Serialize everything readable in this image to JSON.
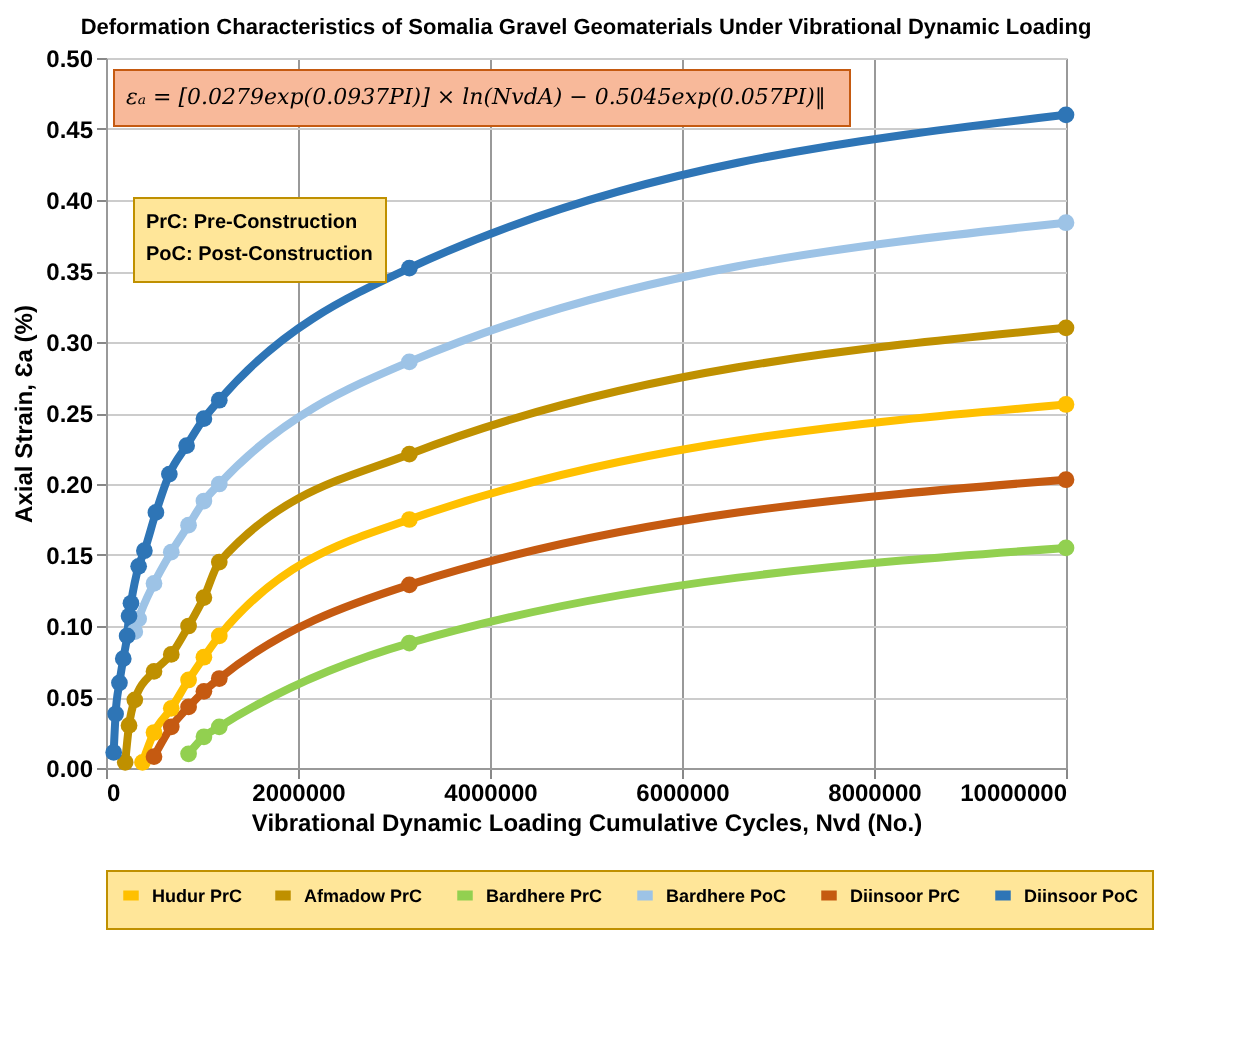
{
  "chart_data": {
    "type": "line",
    "title": "Deformation Characteristics of Somalia Gravel Geomaterials Under Vibrational Dynamic Loading",
    "xlabel": "Vibrational Dynamic Loading Cumulative Cycles, Nvd (No.)",
    "ylabel": "Axial Strain, Ɛa (%)",
    "annotations": [
      "εₐ = [0.0279exp(0.0937PI)] × ln(NvdA) − 0.5045exp(0.057PI)‖",
      "PrC: Pre-Construction",
      "PoC: Post-Construction"
    ],
    "series": [
      {
        "name": "Hudur PrC",
        "color": "#ffc000",
        "x": [
          380000,
          500000,
          680000,
          860000,
          1020000,
          1180000,
          3160000,
          10000000
        ],
        "values": [
          0.004,
          0.025,
          0.042,
          0.062,
          0.078,
          0.093,
          0.175,
          0.256
        ]
      },
      {
        "name": "Afmadow PrC",
        "color": "#bf9000",
        "x": [
          200000,
          240000,
          300000,
          500000,
          680000,
          860000,
          1020000,
          1180000,
          3160000,
          10000000
        ],
        "values": [
          0.004,
          0.03,
          0.048,
          0.068,
          0.08,
          0.1,
          0.12,
          0.145,
          0.221,
          0.31
        ]
      },
      {
        "name": "Bardhere PrC",
        "color": "#92d050",
        "x": [
          860000,
          1020000,
          1180000,
          3160000,
          10000000
        ],
        "values": [
          0.01,
          0.022,
          0.029,
          0.088,
          0.155
        ]
      },
      {
        "name": "Bardhere PoC",
        "color": "#9dc3e6",
        "x": [
          300000,
          340000,
          500000,
          680000,
          860000,
          1020000,
          1180000,
          3160000,
          10000000
        ],
        "values": [
          0.096,
          0.105,
          0.13,
          0.152,
          0.171,
          0.188,
          0.2,
          0.286,
          0.384
        ]
      },
      {
        "name": "Diinsoor PrC",
        "color": "#c55a11",
        "x": [
          500000,
          680000,
          860000,
          1020000,
          1180000,
          3160000,
          10000000
        ],
        "values": [
          0.008,
          0.029,
          0.043,
          0.054,
          0.063,
          0.129,
          0.203
        ]
      },
      {
        "name": "Diinsoor PoC",
        "color": "#2e75b6",
        "x": [
          80000,
          100000,
          140000,
          180000,
          220000,
          240000,
          260000,
          340000,
          400000,
          520000,
          660000,
          840000,
          1020000,
          1180000,
          3160000,
          10000000
        ],
        "values": [
          0.011,
          0.038,
          0.06,
          0.077,
          0.093,
          0.107,
          0.116,
          0.142,
          0.153,
          0.18,
          0.207,
          0.227,
          0.246,
          0.259,
          0.352,
          0.46
        ]
      }
    ],
    "xlim": [
      0,
      10000000
    ],
    "xticks": [
      0,
      2000000,
      4000000,
      6000000,
      8000000,
      10000000
    ],
    "ylim": [
      0,
      0.5
    ],
    "yticks": [
      {
        "value": 0,
        "label": "0.00"
      },
      0.05,
      {
        "value": 0.1,
        "label": "0.10"
      },
      0.15,
      {
        "value": 0.2,
        "label": "0.20"
      },
      0.25,
      {
        "value": 0.3,
        "label": "0.30"
      },
      0.35,
      {
        "value": 0.4,
        "label": "0.40"
      },
      0.45,
      {
        "value": 0.5,
        "label": "0.50"
      }
    ],
    "grid": true,
    "legend": "bottom",
    "marker": "circle",
    "line_style": "solid"
  }
}
